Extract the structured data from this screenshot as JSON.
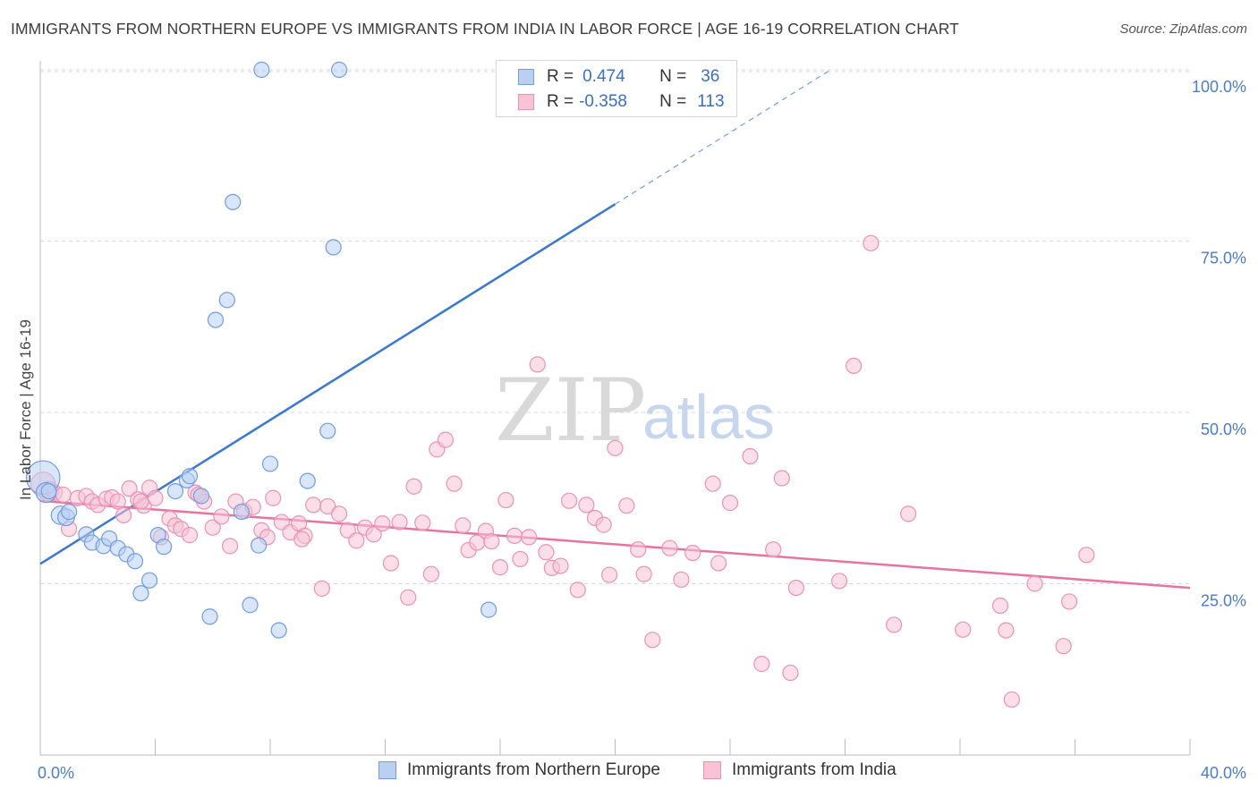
{
  "title": "IMMIGRANTS FROM NORTHERN EUROPE VS IMMIGRANTS FROM INDIA IN LABOR FORCE | AGE 16-19 CORRELATION CHART",
  "source": "Source: ZipAtlas.com",
  "watermark": {
    "zip": "ZIP",
    "atlas": "atlas"
  },
  "legend": {
    "rows": [
      {
        "r_label": "R =",
        "r_value": "0.474",
        "n_label": "N =",
        "n_value": "36"
      },
      {
        "r_label": "R =",
        "r_value": "-0.358",
        "n_label": "N =",
        "n_value": "113"
      }
    ]
  },
  "colors": {
    "blue": "#3a78d4",
    "blue_fill": "#b9d0f3",
    "blue_stroke": "#6f9de0",
    "pink": "#e8739e",
    "pink_fill": "#f7c3d5",
    "pink_stroke": "#eb92b2",
    "grid": "#d9d9d9",
    "tick_text": "#4a7cc9"
  },
  "chart_data": {
    "type": "scatter",
    "title": "IMMIGRANTS FROM NORTHERN EUROPE VS IMMIGRANTS FROM INDIA IN LABOR FORCE | AGE 16-19 CORRELATION CHART",
    "xlabel": "",
    "ylabel": "In Labor Force | Age 16-19",
    "xlim": [
      0,
      40
    ],
    "ylim": [
      0,
      100
    ],
    "x_tick_labels": [
      "0.0%",
      "40.0%"
    ],
    "y_ticks": [
      25,
      50,
      75,
      100
    ],
    "y_tick_labels": [
      "25.0%",
      "50.0%",
      "75.0%",
      "100.0%"
    ],
    "grid": true,
    "legend_position": "top-center",
    "series": [
      {
        "name": "Immigrants from Northern Europe",
        "R": 0.474,
        "N": 36,
        "trend": {
          "x0": 0,
          "y0": 27.9,
          "x1": 20,
          "y1": 80.4,
          "dashed_to_x": 27.5,
          "dashed_to_y": 100
        },
        "points": [
          [
            0.1,
            40.5,
            2.2
          ],
          [
            0.2,
            38.3,
            1.3
          ],
          [
            0.3,
            38.5,
            1
          ],
          [
            0.7,
            35,
            1.2
          ],
          [
            0.9,
            34.7,
            1.1
          ],
          [
            1.0,
            35.5,
            1
          ],
          [
            1.6,
            32.2,
            1
          ],
          [
            1.8,
            31,
            1
          ],
          [
            2.2,
            30.5,
            1
          ],
          [
            2.4,
            31.6,
            1
          ],
          [
            2.7,
            30.2,
            1
          ],
          [
            3.0,
            29.3,
            1
          ],
          [
            3.3,
            28.3,
            1
          ],
          [
            3.5,
            23.6,
            1
          ],
          [
            3.8,
            25.5,
            1
          ],
          [
            4.1,
            32.1,
            1
          ],
          [
            4.3,
            30.4,
            1
          ],
          [
            4.7,
            38.5,
            1
          ],
          [
            5.1,
            40.1,
            1
          ],
          [
            5.2,
            40.7,
            1
          ],
          [
            5.6,
            37.8,
            1
          ],
          [
            5.9,
            20.2,
            1
          ],
          [
            6.1,
            63.5,
            1
          ],
          [
            6.5,
            66.4,
            1
          ],
          [
            6.7,
            80.7,
            1
          ],
          [
            7.0,
            35.5,
            1
          ],
          [
            7.3,
            21.9,
            1
          ],
          [
            7.6,
            30.6,
            1
          ],
          [
            8.0,
            42.5,
            1
          ],
          [
            8.3,
            18.2,
            1
          ],
          [
            7.7,
            100,
            1
          ],
          [
            10.4,
            100,
            1
          ],
          [
            9.3,
            40,
            1
          ],
          [
            10.0,
            47.3,
            1
          ],
          [
            10.2,
            74.1,
            1
          ],
          [
            15.6,
            21.2,
            1
          ]
        ]
      },
      {
        "name": "Immigrants from India",
        "R": -0.358,
        "N": 113,
        "trend": {
          "x0": 0,
          "y0": 37.1,
          "x1": 40,
          "y1": 24.4
        },
        "points": [
          [
            0.1,
            39.5,
            1.6
          ],
          [
            0.3,
            38.5,
            1.3
          ],
          [
            0.5,
            38.3,
            1
          ],
          [
            0.8,
            38,
            1
          ],
          [
            1.0,
            33,
            1
          ],
          [
            1.3,
            37.5,
            1
          ],
          [
            1.6,
            37.8,
            1
          ],
          [
            1.8,
            37,
            1
          ],
          [
            2.0,
            36.5,
            1
          ],
          [
            2.3,
            37.4,
            1
          ],
          [
            2.5,
            37.6,
            1
          ],
          [
            2.7,
            37,
            1
          ],
          [
            2.9,
            35,
            1
          ],
          [
            3.1,
            38.9,
            1
          ],
          [
            3.4,
            37.3,
            1
          ],
          [
            3.6,
            36.4,
            1
          ],
          [
            3.8,
            39,
            1
          ],
          [
            4.0,
            37.5,
            1
          ],
          [
            4.2,
            31.8,
            1
          ],
          [
            4.5,
            34.5,
            1
          ],
          [
            4.7,
            33.5,
            1
          ],
          [
            4.9,
            33,
            1
          ],
          [
            5.2,
            32.1,
            1
          ],
          [
            5.4,
            38.3,
            1
          ],
          [
            5.7,
            37,
            1
          ],
          [
            6.0,
            33.2,
            1
          ],
          [
            6.3,
            34.8,
            1
          ],
          [
            6.6,
            30.5,
            1
          ],
          [
            6.8,
            37,
            1
          ],
          [
            7.1,
            35.6,
            1
          ],
          [
            7.4,
            36.2,
            1
          ],
          [
            7.7,
            32.8,
            1
          ],
          [
            7.9,
            31.8,
            1
          ],
          [
            8.1,
            37.5,
            1
          ],
          [
            8.4,
            34,
            1
          ],
          [
            8.7,
            32.5,
            1
          ],
          [
            9.0,
            33.8,
            1
          ],
          [
            9.2,
            32,
            1
          ],
          [
            9.5,
            36.5,
            1
          ],
          [
            9.8,
            24.3,
            1
          ],
          [
            10.0,
            36.3,
            1
          ],
          [
            10.4,
            35.2,
            1
          ],
          [
            10.7,
            32.8,
            1
          ],
          [
            11.0,
            31.3,
            1
          ],
          [
            11.3,
            33.2,
            1
          ],
          [
            11.6,
            32.2,
            1
          ],
          [
            11.9,
            33.8,
            1
          ],
          [
            12.2,
            28,
            1
          ],
          [
            12.5,
            34,
            1
          ],
          [
            12.8,
            23,
            1
          ],
          [
            13.0,
            39.2,
            1
          ],
          [
            13.3,
            33.9,
            1
          ],
          [
            13.6,
            26.4,
            1
          ],
          [
            13.8,
            44.6,
            1
          ],
          [
            14.1,
            46,
            1
          ],
          [
            14.4,
            39.6,
            1
          ],
          [
            14.7,
            33.5,
            1
          ],
          [
            14.9,
            29.9,
            1
          ],
          [
            15.2,
            31,
            1
          ],
          [
            15.5,
            32.7,
            1
          ],
          [
            15.7,
            31.2,
            1
          ],
          [
            16.0,
            27.4,
            1
          ],
          [
            16.2,
            37.2,
            1
          ],
          [
            16.5,
            32,
            1
          ],
          [
            16.7,
            28.6,
            1
          ],
          [
            17.0,
            31.8,
            1
          ],
          [
            17.3,
            57,
            1
          ],
          [
            17.6,
            29.6,
            1
          ],
          [
            17.8,
            27.3,
            1
          ],
          [
            18.1,
            27.6,
            1
          ],
          [
            18.4,
            37.1,
            1
          ],
          [
            18.7,
            24.1,
            1
          ],
          [
            19.0,
            36.5,
            1
          ],
          [
            19.3,
            34.6,
            1
          ],
          [
            19.6,
            33.6,
            1
          ],
          [
            19.8,
            26.3,
            1
          ],
          [
            20.0,
            44.8,
            1
          ],
          [
            20.4,
            36.4,
            1
          ],
          [
            20.8,
            30,
            1
          ],
          [
            21.0,
            26.4,
            1
          ],
          [
            21.3,
            16.8,
            1
          ],
          [
            21.9,
            30.2,
            1
          ],
          [
            22.3,
            25.6,
            1
          ],
          [
            22.7,
            29.5,
            1
          ],
          [
            23.4,
            39.6,
            1
          ],
          [
            23.6,
            28,
            1
          ],
          [
            24.0,
            36.8,
            1
          ],
          [
            24.7,
            43.6,
            1
          ],
          [
            25.1,
            13.3,
            1
          ],
          [
            25.5,
            30,
            1
          ],
          [
            25.8,
            40.4,
            1
          ],
          [
            26.1,
            12,
            1
          ],
          [
            26.3,
            24.4,
            1
          ],
          [
            27.8,
            25.4,
            1
          ],
          [
            28.3,
            56.8,
            1
          ],
          [
            28.9,
            74.7,
            1
          ],
          [
            29.7,
            19,
            1
          ],
          [
            30.2,
            35.2,
            1
          ],
          [
            32.1,
            18.3,
            1
          ],
          [
            33.4,
            21.8,
            1
          ],
          [
            33.6,
            18.2,
            1
          ],
          [
            33.8,
            8.1,
            1
          ],
          [
            34.6,
            25,
            1
          ],
          [
            35.6,
            15.9,
            1
          ],
          [
            35.8,
            22.4,
            1
          ],
          [
            36.4,
            29.2,
            1
          ],
          [
            3.5,
            37,
            1
          ],
          [
            5.5,
            38,
            1
          ],
          [
            9.1,
            31.5,
            1
          ]
        ]
      }
    ]
  },
  "bottom_legend": [
    {
      "label": "Immigrants from Northern Europe"
    },
    {
      "label": "Immigrants from India"
    }
  ]
}
